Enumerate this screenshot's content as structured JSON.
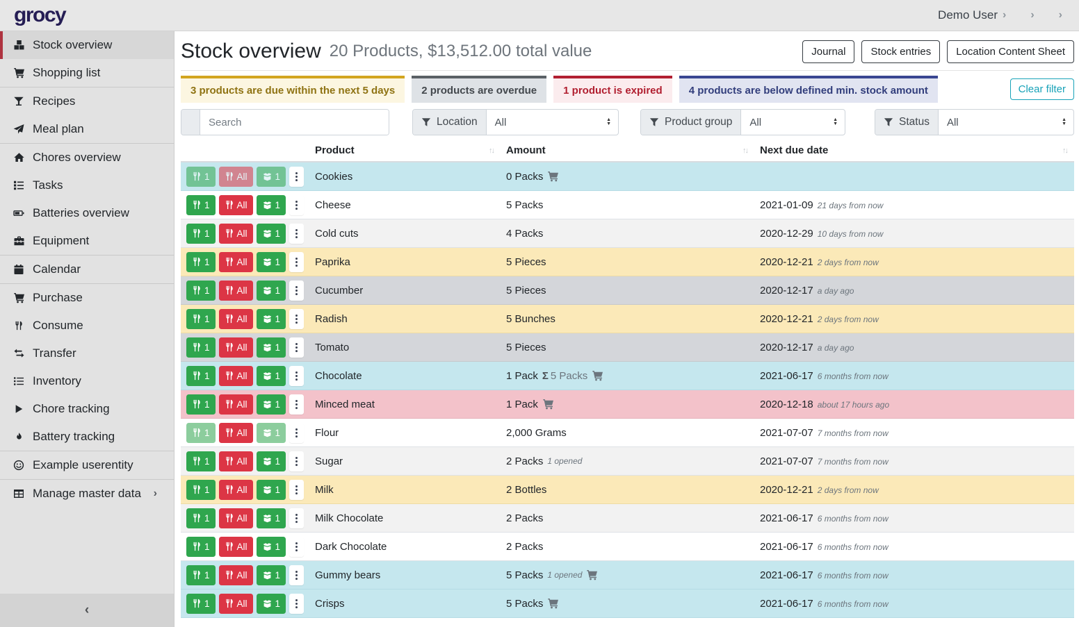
{
  "topbar": {
    "logo": "grocy",
    "user": {
      "icon": "user",
      "label": "Demo User",
      "chevron": "›"
    },
    "settings": {
      "icon": "sliders",
      "chevron": "›"
    },
    "admin": {
      "icon": "wrench",
      "chevron": "›"
    }
  },
  "sidebar": {
    "groups": [
      {
        "items": [
          {
            "icon": "boxes",
            "label": "Stock overview",
            "active": true
          },
          {
            "icon": "cart",
            "label": "Shopping list"
          }
        ]
      },
      {
        "items": [
          {
            "icon": "cocktail",
            "label": "Recipes"
          },
          {
            "icon": "paper-plane",
            "label": "Meal plan"
          }
        ]
      },
      {
        "items": [
          {
            "icon": "home",
            "label": "Chores overview"
          },
          {
            "icon": "tasks",
            "label": "Tasks"
          },
          {
            "icon": "battery",
            "label": "Batteries overview"
          },
          {
            "icon": "toolbox",
            "label": "Equipment"
          }
        ]
      },
      {
        "items": [
          {
            "icon": "calendar",
            "label": "Calendar"
          }
        ]
      },
      {
        "items": [
          {
            "icon": "cart",
            "label": "Purchase"
          },
          {
            "icon": "utensils",
            "label": "Consume"
          },
          {
            "icon": "exchange",
            "label": "Transfer"
          },
          {
            "icon": "list",
            "label": "Inventory"
          },
          {
            "icon": "play",
            "label": "Chore tracking"
          },
          {
            "icon": "fire",
            "label": "Battery tracking"
          }
        ]
      },
      {
        "items": [
          {
            "icon": "smile",
            "label": "Example userentity"
          }
        ]
      },
      {
        "items": [
          {
            "icon": "table",
            "label": "Manage master data",
            "chevron": "›"
          }
        ]
      }
    ],
    "collapse_glyph": "‹"
  },
  "header": {
    "title": "Stock overview",
    "subtitle": "20 Products, $13,512.00 total value",
    "buttons": [
      "Journal",
      "Stock entries",
      "Location Content Sheet"
    ]
  },
  "alerts": [
    {
      "type": "warning",
      "text": "3 products are due within the next 5 days"
    },
    {
      "type": "secondary",
      "text": "2 products are overdue"
    },
    {
      "type": "danger",
      "text": "1 product is expired"
    },
    {
      "type": "primary",
      "text": "4 products are below defined min. stock amount"
    }
  ],
  "clear_filter_label": "Clear filter",
  "filters": {
    "search": {
      "icon": "search",
      "placeholder": "Search"
    },
    "selects": [
      {
        "icon": "filter",
        "label": "Location",
        "value": "All"
      },
      {
        "icon": "filter",
        "label": "Product group",
        "value": "All"
      },
      {
        "icon": "filter",
        "label": "Status",
        "value": "All"
      }
    ]
  },
  "table": {
    "columns": {
      "product": "Product",
      "amount": "Amount",
      "due": "Next due date"
    },
    "sort_glyph": "↑↓",
    "sum_symbol": "Σ",
    "row_buttons": {
      "consume_one": "1",
      "consume_all": "All",
      "open_one": "1"
    },
    "rows": [
      {
        "product": "Cookies",
        "amount": "0 Packs",
        "cart": true,
        "status": "info",
        "muted_buttons": [
          "consume_one",
          "consume_all",
          "open_one"
        ],
        "date": "",
        "due": ""
      },
      {
        "product": "Cheese",
        "amount": "5 Packs",
        "date": "2021-01-09",
        "due": "21 days from now"
      },
      {
        "product": "Cold cuts",
        "amount": "4 Packs",
        "date": "2020-12-29",
        "due": "10 days from now",
        "stripe": true
      },
      {
        "product": "Paprika",
        "amount": "5 Pieces",
        "date": "2020-12-21",
        "due": "2 days from now",
        "status": "warning"
      },
      {
        "product": "Cucumber",
        "amount": "5 Pieces",
        "date": "2020-12-17",
        "due": "a day ago",
        "status": "secondary"
      },
      {
        "product": "Radish",
        "amount": "5 Bunches",
        "date": "2020-12-21",
        "due": "2 days from now",
        "status": "warning"
      },
      {
        "product": "Tomato",
        "amount": "5 Pieces",
        "date": "2020-12-17",
        "due": "a day ago",
        "status": "secondary"
      },
      {
        "product": "Chocolate",
        "amount": "1 Pack",
        "aggregate": "5 Packs",
        "cart": true,
        "date": "2021-06-17",
        "due": "6 months from now",
        "status": "info"
      },
      {
        "product": "Minced meat",
        "amount": "1 Pack",
        "cart": true,
        "date": "2020-12-18",
        "due": "about 17 hours ago",
        "status": "danger"
      },
      {
        "product": "Flour",
        "amount": "2,000 Grams",
        "date": "2021-07-07",
        "due": "7 months from now",
        "muted_buttons": [
          "consume_one",
          "open_one"
        ]
      },
      {
        "product": "Sugar",
        "amount": "2 Packs",
        "opened": "1 opened",
        "date": "2021-07-07",
        "due": "7 months from now",
        "stripe": true
      },
      {
        "product": "Milk",
        "amount": "2 Bottles",
        "date": "2020-12-21",
        "due": "2 days from now",
        "status": "warning"
      },
      {
        "product": "Milk Chocolate",
        "amount": "2 Packs",
        "date": "2021-06-17",
        "due": "6 months from now",
        "stripe": true
      },
      {
        "product": "Dark Chocolate",
        "amount": "2 Packs",
        "date": "2021-06-17",
        "due": "6 months from now"
      },
      {
        "product": "Gummy bears",
        "amount": "5 Packs",
        "opened": "1 opened",
        "cart": true,
        "date": "2021-06-17",
        "due": "6 months from now",
        "status": "info"
      },
      {
        "product": "Crisps",
        "amount": "5 Packs",
        "cart": true,
        "date": "2021-06-17",
        "due": "6 months from now",
        "status": "info"
      }
    ]
  },
  "colors": {
    "success_button": "#2fa64e",
    "danger_button": "#dc3545",
    "active_item_accent": "#ae3340",
    "clear_filter_teal": "#17a2b8",
    "row_info": "#c5e7ee",
    "row_warning": "#fbe9b8",
    "row_secondary": "#d4d6da",
    "row_danger": "#f3c2ca",
    "row_stripe": "#f2f2f2",
    "logo_navy": "#251d54"
  }
}
